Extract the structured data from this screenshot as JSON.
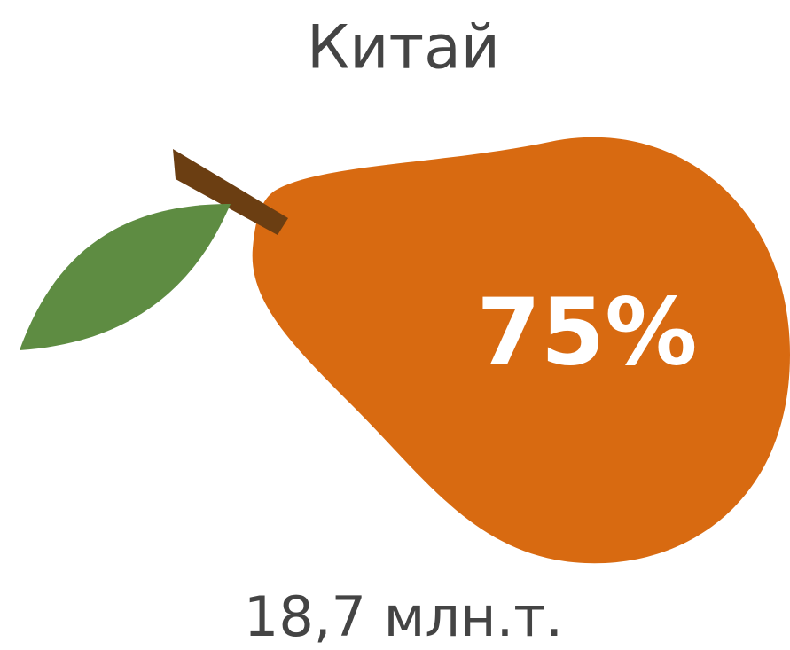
{
  "title": "Китай",
  "share": "75%",
  "amount": "18,7 млн.т."
}
